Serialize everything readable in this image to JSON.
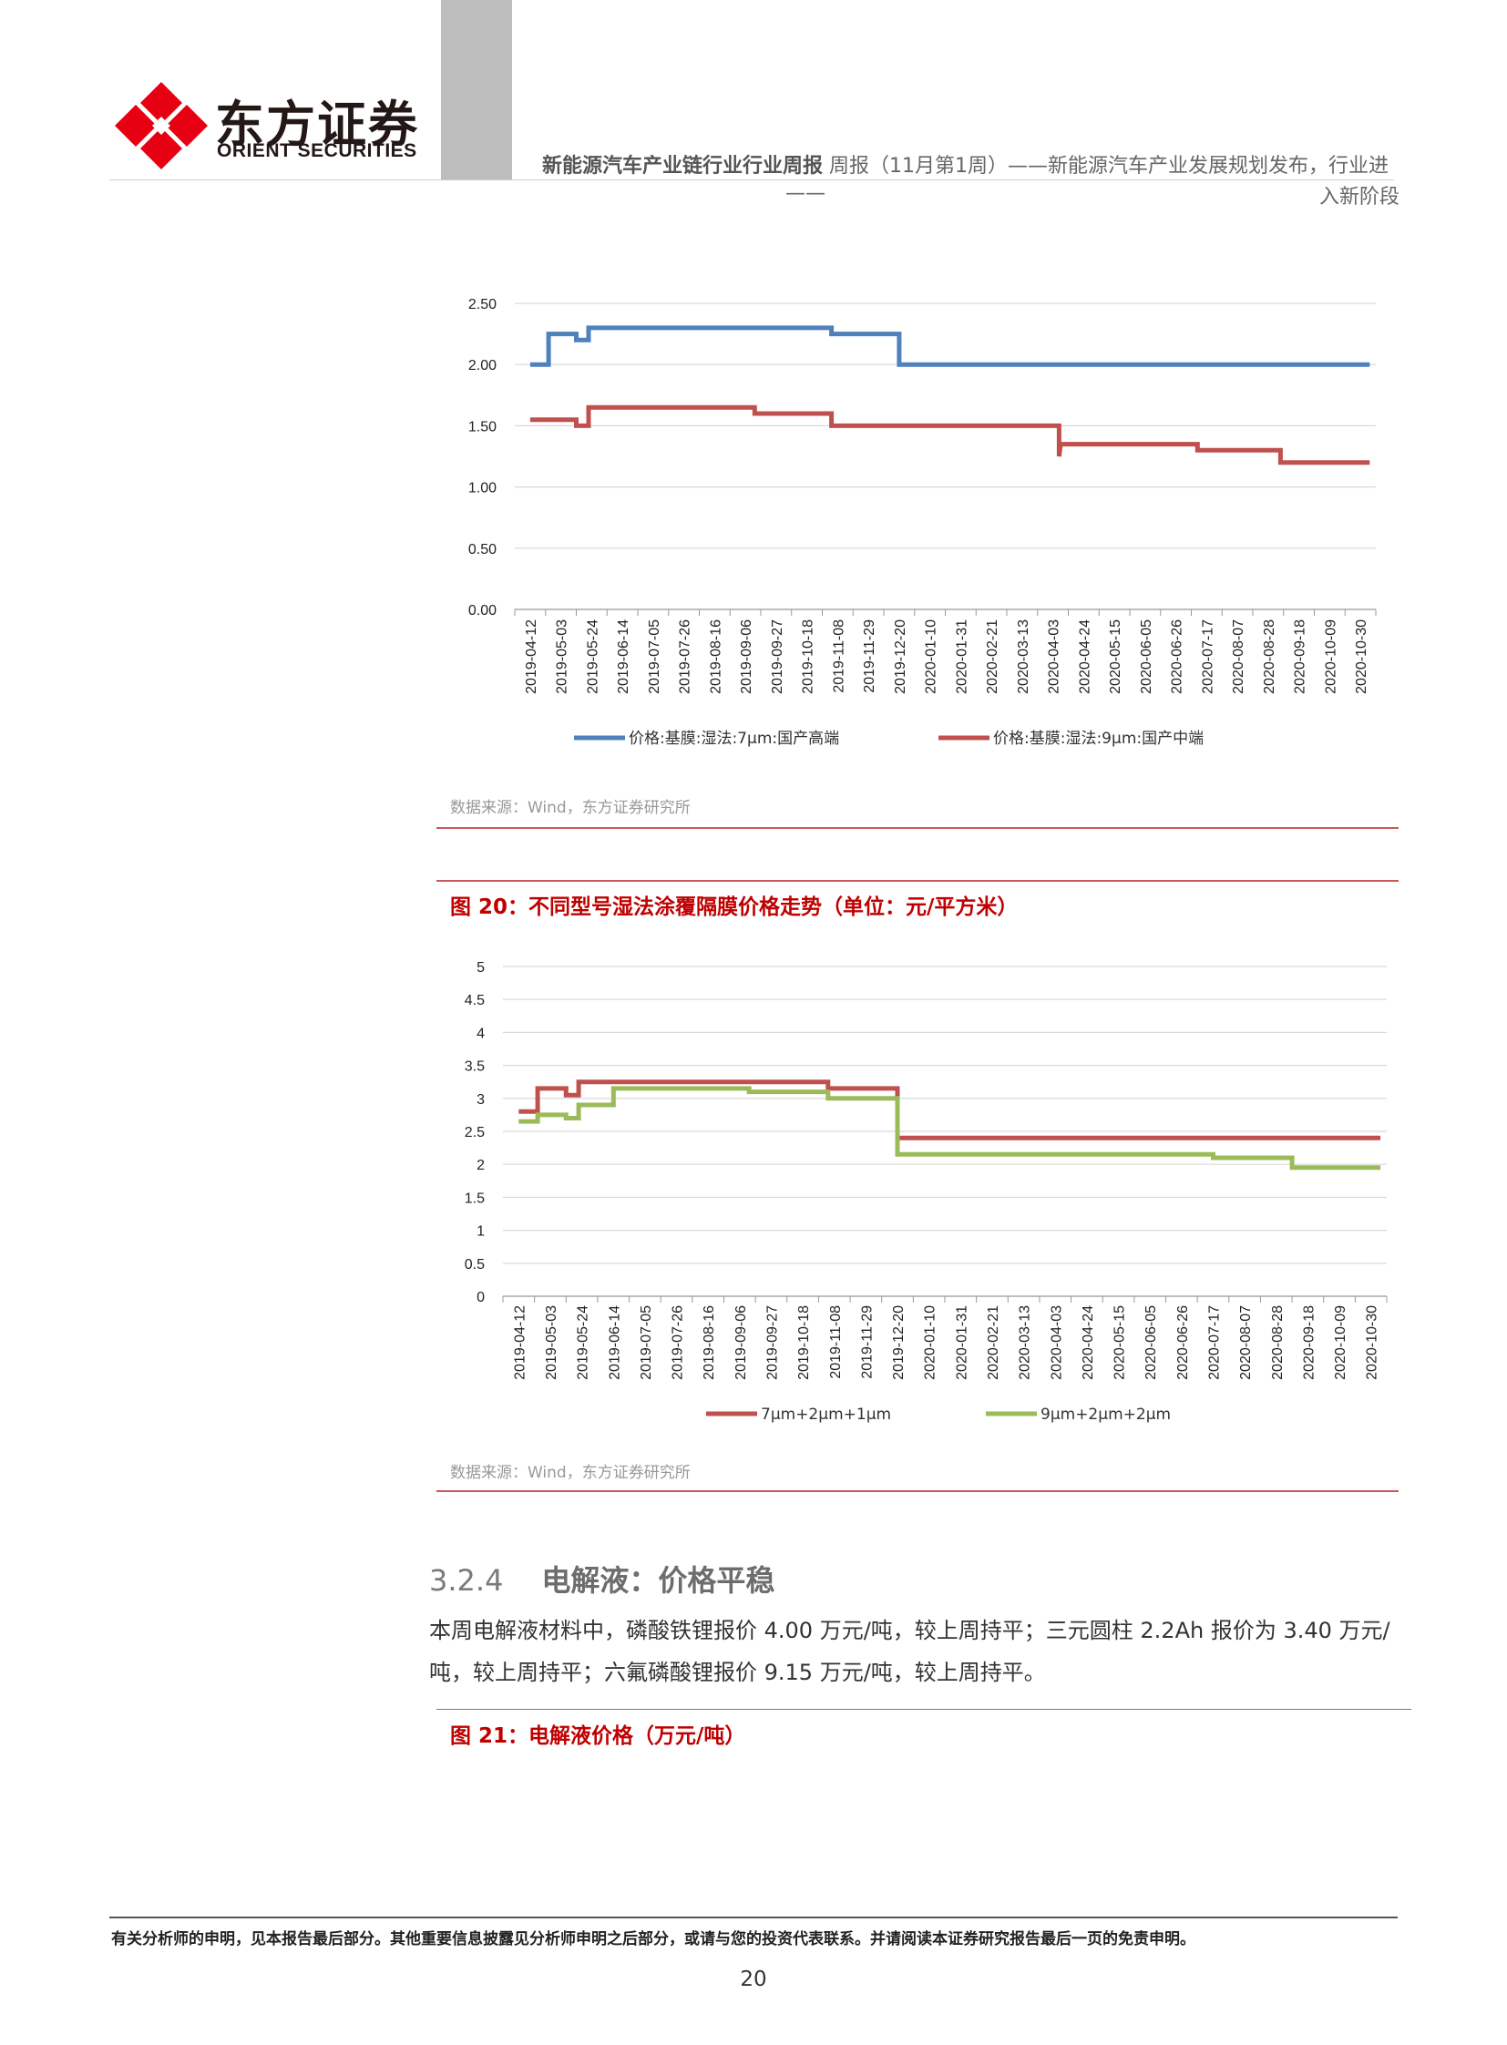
{
  "header": {
    "logo_cn": "东方证券",
    "logo_en": "ORIENT SECURITIES",
    "title_bold": "新能源汽车产业链行业行业周报",
    "title_rest": "周报（11月第1周）——新能源汽车产业发展规划发布，行业进",
    "title_dash": "——",
    "title_line2": "入新阶段"
  },
  "chart_data": [
    {
      "type": "line",
      "title": "",
      "categories": [
        "2019-04-12",
        "2019-05-03",
        "2019-05-24",
        "2019-06-14",
        "2019-07-05",
        "2019-07-26",
        "2019-08-16",
        "2019-09-06",
        "2019-09-27",
        "2019-10-18",
        "2019-11-08",
        "2019-11-29",
        "2019-12-20",
        "2020-01-10",
        "2020-01-31",
        "2020-02-21",
        "2020-03-13",
        "2020-04-03",
        "2020-04-24",
        "2020-05-15",
        "2020-06-05",
        "2020-06-26",
        "2020-07-17",
        "2020-08-07",
        "2020-08-28",
        "2020-09-18",
        "2020-10-09",
        "2020-10-30"
      ],
      "yticks": [
        "0.00",
        "0.50",
        "1.00",
        "1.50",
        "2.00",
        "2.50"
      ],
      "ylim": [
        0,
        2.5
      ],
      "series": [
        {
          "name": "价格:基膜:湿法:7μm:国产高端",
          "color": "#4f81bd",
          "steps": [
            [
              0,
              2.0
            ],
            [
              0.6,
              2.0
            ],
            [
              0.6,
              2.25
            ],
            [
              1.5,
              2.25
            ],
            [
              1.5,
              2.2
            ],
            [
              1.9,
              2.2
            ],
            [
              1.9,
              2.3
            ],
            [
              9.8,
              2.3
            ],
            [
              9.8,
              2.25
            ],
            [
              12.0,
              2.25
            ],
            [
              12.0,
              2.0
            ],
            [
              27.3,
              2.0
            ]
          ]
        },
        {
          "name": "价格:基膜:湿法:9μm:国产中端",
          "color": "#c0504d",
          "steps": [
            [
              0,
              1.55
            ],
            [
              1.5,
              1.55
            ],
            [
              1.5,
              1.5
            ],
            [
              1.9,
              1.5
            ],
            [
              1.9,
              1.65
            ],
            [
              7.3,
              1.65
            ],
            [
              7.3,
              1.6
            ],
            [
              9.8,
              1.6
            ],
            [
              9.8,
              1.5
            ],
            [
              17.2,
              1.5
            ],
            [
              17.2,
              1.25
            ],
            [
              17.25,
              1.35
            ],
            [
              21.7,
              1.35
            ],
            [
              21.7,
              1.3
            ],
            [
              24.4,
              1.3
            ],
            [
              24.4,
              1.2
            ],
            [
              27.3,
              1.2
            ]
          ]
        }
      ],
      "legend": "bottom",
      "grid": true
    },
    {
      "type": "line",
      "title": "图 20：不同型号湿法涂覆隔膜价格走势（单位：元/平方米）",
      "categories": [
        "2019-04-12",
        "2019-05-03",
        "2019-05-24",
        "2019-06-14",
        "2019-07-05",
        "2019-07-26",
        "2019-08-16",
        "2019-09-06",
        "2019-09-27",
        "2019-10-18",
        "2019-11-08",
        "2019-11-29",
        "2019-12-20",
        "2020-01-10",
        "2020-01-31",
        "2020-02-21",
        "2020-03-13",
        "2020-04-03",
        "2020-04-24",
        "2020-05-15",
        "2020-06-05",
        "2020-06-26",
        "2020-07-17",
        "2020-08-07",
        "2020-08-28",
        "2020-09-18",
        "2020-10-09",
        "2020-10-30"
      ],
      "yticks": [
        "0",
        "0.5",
        "1",
        "1.5",
        "2",
        "2.5",
        "3",
        "3.5",
        "4",
        "4.5",
        "5"
      ],
      "ylim": [
        0,
        5
      ],
      "series": [
        {
          "name": "7μm+2μm+1μm",
          "color": "#c0504d",
          "steps": [
            [
              0,
              2.8
            ],
            [
              0.6,
              2.8
            ],
            [
              0.6,
              3.15
            ],
            [
              1.5,
              3.15
            ],
            [
              1.5,
              3.05
            ],
            [
              1.9,
              3.05
            ],
            [
              1.9,
              3.25
            ],
            [
              9.8,
              3.25
            ],
            [
              9.8,
              3.15
            ],
            [
              12.0,
              3.15
            ],
            [
              12.0,
              2.4
            ],
            [
              27.3,
              2.4
            ]
          ]
        },
        {
          "name": "9μm+2μm+2μm",
          "color": "#9bbb59",
          "steps": [
            [
              0,
              2.65
            ],
            [
              0.6,
              2.65
            ],
            [
              0.6,
              2.75
            ],
            [
              1.5,
              2.75
            ],
            [
              1.5,
              2.7
            ],
            [
              1.9,
              2.7
            ],
            [
              1.9,
              2.9
            ],
            [
              3.0,
              2.9
            ],
            [
              3.0,
              3.15
            ],
            [
              7.3,
              3.15
            ],
            [
              7.3,
              3.1
            ],
            [
              9.8,
              3.1
            ],
            [
              9.8,
              3.0
            ],
            [
              12.0,
              3.0
            ],
            [
              12.0,
              2.15
            ],
            [
              22.0,
              2.15
            ],
            [
              22.0,
              2.1
            ],
            [
              24.5,
              2.1
            ],
            [
              24.5,
              1.95
            ],
            [
              27.3,
              1.95
            ]
          ]
        }
      ],
      "legend": "bottom",
      "grid": true
    }
  ],
  "sources": {
    "chart1": "数据来源：Wind，东方证券研究所",
    "chart2": "数据来源：Wind，东方证券研究所"
  },
  "section": {
    "number": "3.2.4",
    "title": "电解液：价格平稳",
    "paragraph": "本周电解液材料中，磷酸铁锂报价 4.00 万元/吨，较上周持平；三元圆柱 2.2Ah 报价为 3.40 万元/吨，较上周持平；六氟磷酸锂报价 9.15 万元/吨，较上周持平。"
  },
  "figure21_title": "图 21：电解液价格（万元/吨）",
  "footer": {
    "disclaimer": "有关分析师的申明，见本报告最后部分。其他重要信息披露见分析师申明之后部分，或请与您的投资代表联系。并请阅读本证券研究报告最后一页的免责申明。",
    "page_number": "20"
  }
}
